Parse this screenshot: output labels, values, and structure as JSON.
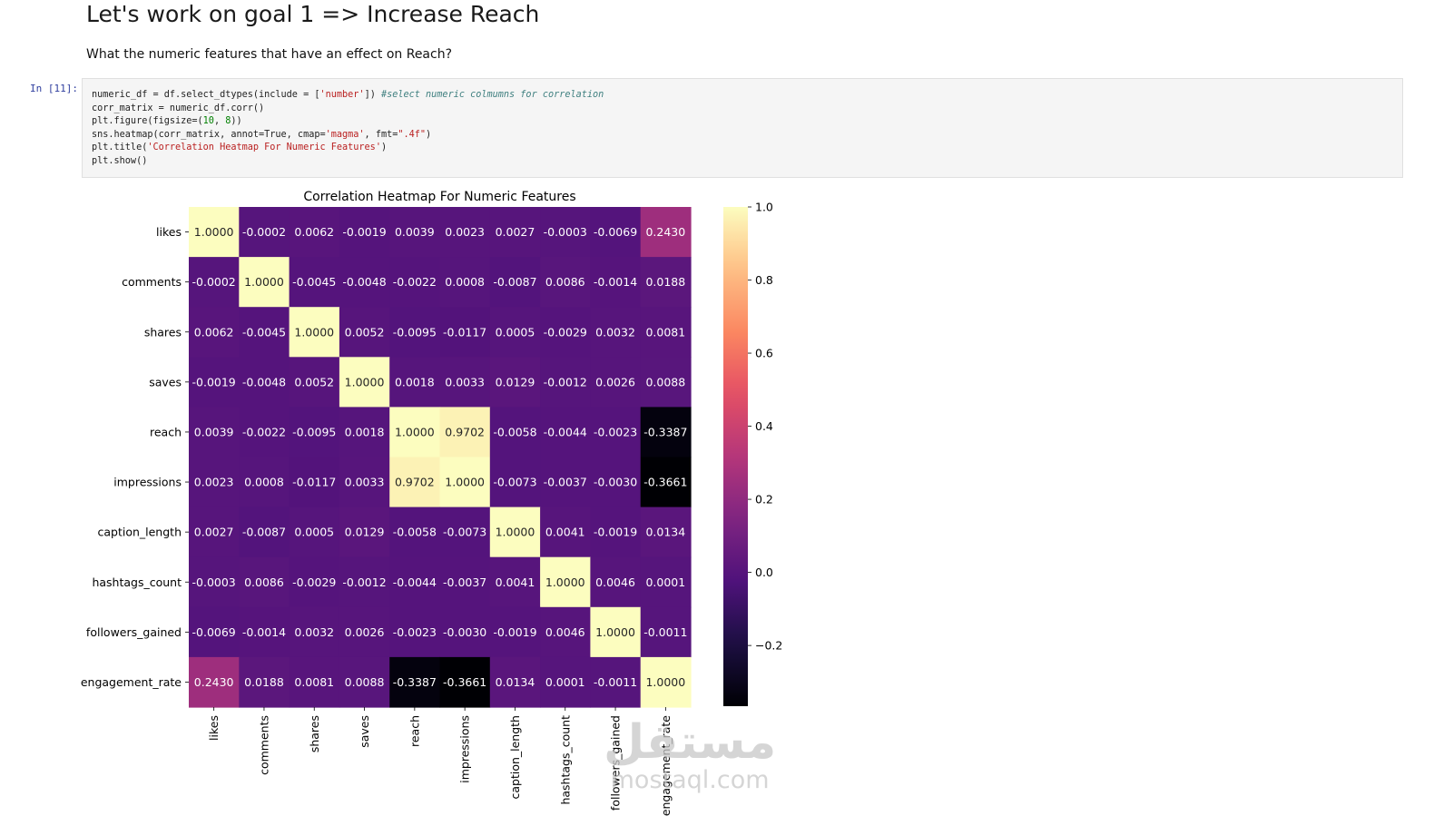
{
  "notebook": {
    "heading": "Let's work on goal 1 => Increase Reach",
    "question": "What the numeric features that have an effect on Reach?",
    "cell_prompt": "In [11]:",
    "code": {
      "l1_a": "numeric_df = df.select_dtypes(include = [",
      "l1_str": "'number'",
      "l1_b": "]) ",
      "l1_comment": "#select numeric colmumns for correlation",
      "l2": "corr_matrix = numeric_df.corr()",
      "l3_a": "plt.figure(figsize=(",
      "l3_n1": "10",
      "l3_mid": ", ",
      "l3_n2": "8",
      "l3_b": "))",
      "l4_a": "sns.heatmap(corr_matrix, annot=True, cmap=",
      "l4_str1": "'magma'",
      "l4_b": ", fmt=",
      "l4_str2": "\".4f\"",
      "l4_c": ")",
      "l5_a": "plt.title(",
      "l5_str": "'Correlation Heatmap For Numeric Features'",
      "l5_b": ")",
      "l6": "plt.show()"
    }
  },
  "watermark": {
    "arabic": "مستقل",
    "latin": "mostaql.com"
  },
  "chart_data": {
    "type": "heatmap",
    "title": "Correlation Heatmap For Numeric Features",
    "cmap": "magma",
    "labels": [
      "likes",
      "comments",
      "shares",
      "saves",
      "reach",
      "impressions",
      "caption_length",
      "hashtags_count",
      "followers_gained",
      "engagement_rate"
    ],
    "matrix": [
      [
        1.0,
        -0.0002,
        0.0062,
        -0.0019,
        0.0039,
        0.0023,
        0.0027,
        -0.0003,
        -0.0069,
        0.243
      ],
      [
        -0.0002,
        1.0,
        -0.0045,
        -0.0048,
        -0.0022,
        0.0008,
        -0.0087,
        0.0086,
        -0.0014,
        0.0188
      ],
      [
        0.0062,
        -0.0045,
        1.0,
        0.0052,
        -0.0095,
        -0.0117,
        0.0005,
        -0.0029,
        0.0032,
        0.0081
      ],
      [
        -0.0019,
        -0.0048,
        0.0052,
        1.0,
        0.0018,
        0.0033,
        0.0129,
        -0.0012,
        0.0026,
        0.0088
      ],
      [
        0.0039,
        -0.0022,
        -0.0095,
        0.0018,
        1.0,
        0.9702,
        -0.0058,
        -0.0044,
        -0.0023,
        -0.3387
      ],
      [
        0.0023,
        0.0008,
        -0.0117,
        0.0033,
        0.9702,
        1.0,
        -0.0073,
        -0.0037,
        -0.003,
        -0.3661
      ],
      [
        0.0027,
        -0.0087,
        0.0005,
        0.0129,
        -0.0058,
        -0.0073,
        1.0,
        0.0041,
        -0.0019,
        0.0134
      ],
      [
        -0.0003,
        0.0086,
        -0.0029,
        -0.0012,
        -0.0044,
        -0.0037,
        0.0041,
        1.0,
        0.0046,
        0.0001
      ],
      [
        -0.0069,
        -0.0014,
        0.0032,
        0.0026,
        -0.0023,
        -0.003,
        -0.0019,
        0.0046,
        1.0,
        -0.0011
      ],
      [
        0.243,
        0.0188,
        0.0081,
        0.0088,
        -0.3387,
        -0.3661,
        0.0134,
        0.0001,
        -0.0011,
        1.0
      ]
    ],
    "colorbar": {
      "range": [
        -0.3661,
        1.0
      ],
      "ticks": [
        1.0,
        0.8,
        0.6,
        0.4,
        0.2,
        0.0,
        -0.2
      ],
      "tick_labels": [
        "1.0",
        "0.8",
        "0.6",
        "0.4",
        "0.2",
        "0.0",
        "−0.2"
      ]
    }
  }
}
